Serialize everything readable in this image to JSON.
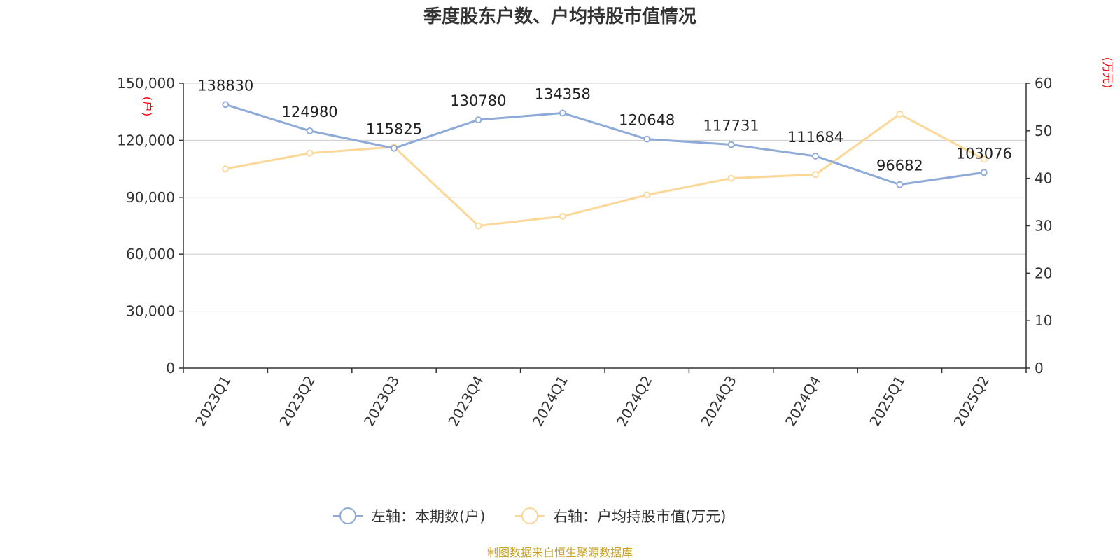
{
  "chart_data": {
    "type": "line",
    "title": "季度股东户数、户均持股市值情况",
    "categories": [
      "2023Q1",
      "2023Q2",
      "2023Q3",
      "2023Q4",
      "2024Q1",
      "2024Q2",
      "2024Q3",
      "2024Q4",
      "2025Q1",
      "2025Q2"
    ],
    "series": [
      {
        "name": "左轴：本期数(户)",
        "axis": "left",
        "color": "#8eaad8",
        "values": [
          138830,
          124980,
          115825,
          130780,
          134358,
          120648,
          117731,
          111684,
          96682,
          103076
        ],
        "labels": [
          "138830",
          "124980",
          "115825",
          "130780",
          "134358",
          "120648",
          "117731",
          "111684",
          "96682",
          "103076"
        ]
      },
      {
        "name": "右轴：户均持股市值(万元)",
        "axis": "right",
        "color": "#fcd898",
        "values": [
          42.0,
          45.3,
          46.6,
          30.0,
          32.0,
          36.5,
          40.0,
          40.8,
          53.5,
          44.0
        ]
      }
    ],
    "left_axis": {
      "unit": "(户)",
      "ylim": [
        0,
        150000
      ],
      "ticks": [
        "0",
        "30,000",
        "60,000",
        "90,000",
        "120,000",
        "150,000"
      ],
      "tick_values": [
        0,
        30000,
        60000,
        90000,
        120000,
        150000
      ]
    },
    "right_axis": {
      "unit": "(万元)",
      "ylim": [
        0,
        60
      ],
      "ticks": [
        "0",
        "10",
        "20",
        "30",
        "40",
        "50",
        "60"
      ],
      "tick_values": [
        0,
        10,
        20,
        30,
        40,
        50,
        60
      ]
    },
    "grid": true,
    "legend_position": "bottom-center",
    "source": "制图数据来自恒生聚源数据库"
  }
}
